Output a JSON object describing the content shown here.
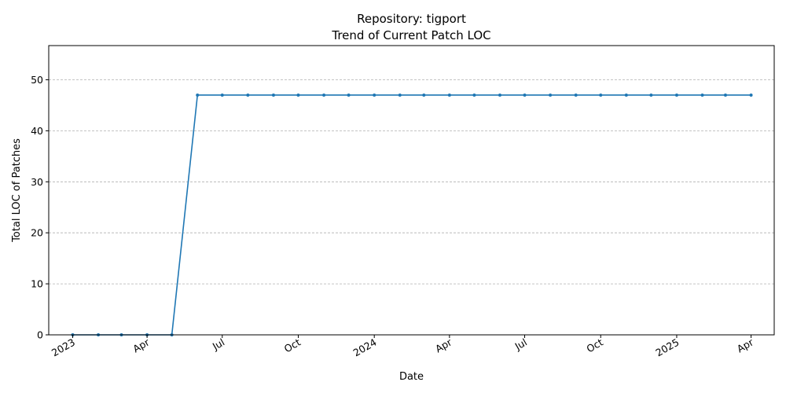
{
  "chart_data": {
    "type": "line",
    "title": "Repository: tigport",
    "subtitle": "Trend of Current Patch LOC",
    "xlabel": "Date",
    "ylabel": "Total LOC of Patches",
    "ylim": [
      0,
      56.7
    ],
    "xlim": [
      "2022-12-03",
      "2025-04-29"
    ],
    "grid": "y-dashed",
    "legend": "none",
    "color": "#1f77b4",
    "y_ticks": [
      0,
      10,
      20,
      30,
      40,
      50
    ],
    "x_ticks": [
      {
        "date": "2023-01-01",
        "label": "2023"
      },
      {
        "date": "2023-04-01",
        "label": "Apr"
      },
      {
        "date": "2023-07-01",
        "label": "Jul"
      },
      {
        "date": "2023-10-01",
        "label": "Oct"
      },
      {
        "date": "2024-01-01",
        "label": "2024"
      },
      {
        "date": "2024-04-01",
        "label": "Apr"
      },
      {
        "date": "2024-07-01",
        "label": "Jul"
      },
      {
        "date": "2024-10-01",
        "label": "Oct"
      },
      {
        "date": "2025-01-01",
        "label": "2025"
      },
      {
        "date": "2025-04-01",
        "label": "Apr"
      }
    ],
    "x": [
      "2023-01-01",
      "2023-02-01",
      "2023-03-01",
      "2023-04-01",
      "2023-05-01",
      "2023-06-01",
      "2023-07-01",
      "2023-08-01",
      "2023-09-01",
      "2023-10-01",
      "2023-11-01",
      "2023-12-01",
      "2024-01-01",
      "2024-02-01",
      "2024-03-01",
      "2024-04-01",
      "2024-05-01",
      "2024-06-01",
      "2024-07-01",
      "2024-08-01",
      "2024-09-01",
      "2024-10-01",
      "2024-11-01",
      "2024-12-01",
      "2025-01-01",
      "2025-02-01",
      "2025-03-01",
      "2025-04-01"
    ],
    "values": [
      0,
      0,
      0,
      0,
      0,
      47,
      47,
      47,
      47,
      47,
      47,
      47,
      47,
      47,
      47,
      47,
      47,
      47,
      47,
      47,
      47,
      47,
      47,
      47,
      47,
      47,
      47,
      47
    ]
  }
}
